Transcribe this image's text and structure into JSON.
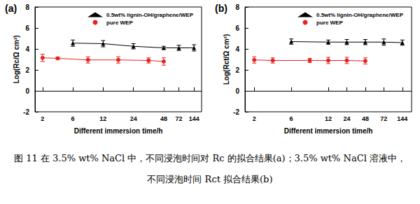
{
  "chart_data": [
    {
      "type": "line",
      "title": "(a)",
      "x_label": "Different immersion time/h",
      "y_label": "Log(Rc/Ω cm²)",
      "categories": [
        "2",
        null,
        "6",
        null,
        "12",
        null,
        "24",
        null,
        "48",
        "72",
        "144"
      ],
      "ylim": [
        -2,
        8
      ],
      "yticks": [
        -2,
        0,
        2,
        4,
        6,
        8
      ],
      "legend": "top",
      "series": [
        {
          "name": "0.5wt% lignin-OH/graphene/WEP",
          "color": "#000000",
          "marker": "triangle",
          "values": [
            null,
            null,
            4.55,
            null,
            4.5,
            null,
            4.25,
            null,
            4.1,
            4.1,
            4.1
          ],
          "errors": [
            null,
            null,
            0.3,
            null,
            0.3,
            null,
            0.25,
            null,
            0.15,
            0.25,
            0.3
          ]
        },
        {
          "name": "pure WEP",
          "color": "#e8231f",
          "marker": "circle",
          "values": [
            3.15,
            3.1,
            null,
            2.95,
            null,
            2.95,
            null,
            2.9,
            2.8,
            null,
            null
          ],
          "errors": [
            0.35,
            0.1,
            null,
            0.3,
            null,
            0.3,
            null,
            0.25,
            0.35,
            null,
            null
          ]
        }
      ]
    },
    {
      "type": "line",
      "title": "(b)",
      "x_label": "Different immersion time/h",
      "y_label": "Log(Rct/Ω cm²)",
      "categories": [
        "2",
        null,
        "6",
        null,
        "12",
        "24",
        "48",
        "72",
        "144"
      ],
      "ylim": [
        -2,
        8
      ],
      "yticks": [
        -2,
        0,
        2,
        4,
        6,
        8
      ],
      "legend": "top",
      "series": [
        {
          "name": "0.5wt% lignin-OH/graphene/WEP",
          "color": "#000000",
          "marker": "triangle",
          "values": [
            null,
            null,
            4.7,
            null,
            4.65,
            4.65,
            4.65,
            4.65,
            4.6
          ],
          "errors": [
            null,
            null,
            0.25,
            null,
            0.2,
            0.25,
            0.25,
            0.3,
            0.25
          ]
        },
        {
          "name": "pure WEP",
          "color": "#e8231f",
          "marker": "circle",
          "values": [
            2.95,
            2.9,
            null,
            2.9,
            2.9,
            2.9,
            2.85,
            null,
            null
          ],
          "errors": [
            0.3,
            0.25,
            null,
            0.2,
            0.3,
            0.3,
            0.3,
            null,
            null
          ]
        }
      ]
    }
  ],
  "caption": "图 11 在 3.5% wt% NaCl 中，不同浸泡时间对 Rc 的拟合结果(a)；3.5% wt% NaCl 溶液中，不同浸泡时间 Rct 拟合结果(b)"
}
